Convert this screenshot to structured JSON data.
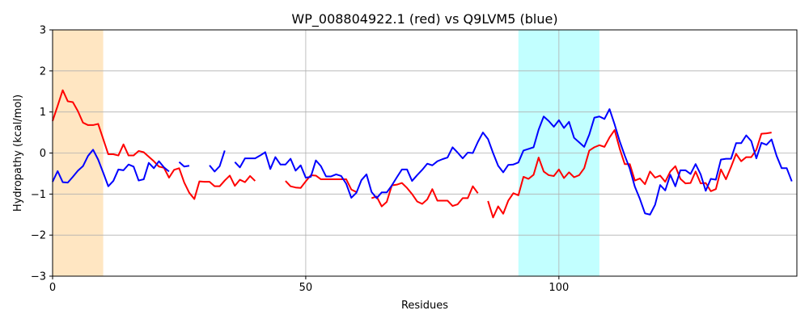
{
  "chart_data": {
    "type": "line",
    "title": "WP_008804922.1 (red) vs Q9LVM5 (blue)",
    "xlabel": "Residues",
    "ylabel": "Hydropathy (kcal/mol)",
    "xlim": [
      0,
      147
    ],
    "ylim": [
      -3,
      3
    ],
    "xticks": [
      0,
      50,
      100
    ],
    "yticks": [
      -3,
      -2,
      -1,
      0,
      1,
      2,
      3
    ],
    "grid": true,
    "highlight_regions": [
      {
        "x0": 0,
        "x1": 10,
        "color": "#ffe6c2"
      },
      {
        "x0": 92,
        "x1": 108,
        "color": "#c2ffff"
      }
    ],
    "series": [
      {
        "color": "#ff0000",
        "segments": [
          [
            [
              0,
              0.78
            ],
            [
              1,
              1.15
            ],
            [
              2,
              1.53
            ],
            [
              3,
              1.26
            ],
            [
              4,
              1.24
            ],
            [
              5,
              1.02
            ],
            [
              6,
              0.74
            ],
            [
              7,
              0.68
            ],
            [
              8,
              0.68
            ],
            [
              9,
              0.71
            ],
            [
              10,
              0.34
            ],
            [
              11,
              -0.03
            ],
            [
              12,
              -0.03
            ],
            [
              13,
              -0.06
            ],
            [
              14,
              0.21
            ],
            [
              15,
              -0.06
            ],
            [
              16,
              -0.06
            ],
            [
              17,
              0.05
            ],
            [
              18,
              0.02
            ],
            [
              19,
              -0.09
            ],
            [
              20,
              -0.2
            ],
            [
              21,
              -0.33
            ],
            [
              22,
              -0.36
            ],
            [
              23,
              -0.6
            ],
            [
              24,
              -0.41
            ],
            [
              25,
              -0.37
            ],
            [
              26,
              -0.72
            ],
            [
              27,
              -0.97
            ],
            [
              28,
              -1.12
            ],
            [
              29,
              -0.69
            ],
            [
              30,
              -0.7
            ],
            [
              31,
              -0.7
            ],
            [
              32,
              -0.81
            ],
            [
              33,
              -0.81
            ],
            [
              34,
              -0.67
            ],
            [
              35,
              -0.55
            ],
            [
              36,
              -0.8
            ],
            [
              37,
              -0.65
            ],
            [
              38,
              -0.71
            ],
            [
              39,
              -0.56
            ],
            [
              40,
              -0.68
            ]
          ],
          [
            [
              46,
              -0.68
            ],
            [
              47,
              -0.81
            ],
            [
              48,
              -0.84
            ],
            [
              49,
              -0.85
            ],
            [
              50,
              -0.69
            ],
            [
              51,
              -0.54
            ],
            [
              52,
              -0.55
            ],
            [
              53,
              -0.64
            ],
            [
              54,
              -0.64
            ],
            [
              55,
              -0.64
            ],
            [
              56,
              -0.64
            ],
            [
              57,
              -0.64
            ],
            [
              58,
              -0.64
            ],
            [
              59,
              -0.89
            ],
            [
              60,
              -0.95
            ]
          ],
          [
            [
              63,
              -1.1
            ],
            [
              64,
              -1.06
            ],
            [
              65,
              -1.3
            ],
            [
              66,
              -1.19
            ],
            [
              67,
              -0.79
            ],
            [
              68,
              -0.77
            ],
            [
              69,
              -0.73
            ],
            [
              70,
              -0.85
            ],
            [
              71,
              -1.0
            ],
            [
              72,
              -1.18
            ],
            [
              73,
              -1.24
            ],
            [
              74,
              -1.13
            ],
            [
              75,
              -0.88
            ],
            [
              76,
              -1.16
            ],
            [
              77,
              -1.16
            ],
            [
              78,
              -1.16
            ],
            [
              79,
              -1.29
            ],
            [
              80,
              -1.25
            ],
            [
              81,
              -1.1
            ],
            [
              82,
              -1.1
            ],
            [
              83,
              -0.81
            ],
            [
              84,
              -0.98
            ]
          ],
          [
            [
              86,
              -1.17
            ],
            [
              87,
              -1.57
            ],
            [
              88,
              -1.3
            ],
            [
              89,
              -1.48
            ],
            [
              90,
              -1.16
            ],
            [
              91,
              -0.98
            ],
            [
              92,
              -1.03
            ],
            [
              93,
              -0.58
            ],
            [
              94,
              -0.63
            ],
            [
              95,
              -0.53
            ],
            [
              96,
              -0.11
            ],
            [
              97,
              -0.45
            ],
            [
              98,
              -0.54
            ],
            [
              99,
              -0.56
            ],
            [
              100,
              -0.4
            ],
            [
              101,
              -0.61
            ],
            [
              102,
              -0.47
            ],
            [
              103,
              -0.59
            ],
            [
              104,
              -0.54
            ],
            [
              105,
              -0.37
            ],
            [
              106,
              0.06
            ],
            [
              107,
              0.14
            ],
            [
              108,
              0.19
            ],
            [
              109,
              0.15
            ],
            [
              110,
              0.38
            ],
            [
              111,
              0.56
            ],
            [
              112,
              0.11
            ],
            [
              113,
              -0.27
            ],
            [
              114,
              -0.27
            ],
            [
              115,
              -0.67
            ],
            [
              116,
              -0.62
            ],
            [
              117,
              -0.76
            ],
            [
              118,
              -0.45
            ],
            [
              119,
              -0.6
            ],
            [
              120,
              -0.55
            ],
            [
              121,
              -0.7
            ],
            [
              122,
              -0.45
            ],
            [
              123,
              -0.32
            ],
            [
              124,
              -0.63
            ],
            [
              125,
              -0.74
            ],
            [
              126,
              -0.73
            ],
            [
              127,
              -0.45
            ],
            [
              128,
              -0.74
            ],
            [
              129,
              -0.73
            ],
            [
              130,
              -0.93
            ],
            [
              131,
              -0.88
            ],
            [
              132,
              -0.4
            ],
            [
              133,
              -0.64
            ],
            [
              134,
              -0.34
            ],
            [
              135,
              -0.02
            ],
            [
              136,
              -0.2
            ],
            [
              137,
              -0.1
            ],
            [
              138,
              -0.1
            ],
            [
              139,
              0.08
            ],
            [
              140,
              0.47
            ],
            [
              141,
              0.48
            ],
            [
              142,
              0.5
            ]
          ]
        ]
      },
      {
        "color": "#0000ff",
        "segments": [
          [
            [
              0,
              -0.7
            ],
            [
              1,
              -0.44
            ],
            [
              2,
              -0.71
            ],
            [
              3,
              -0.72
            ],
            [
              4,
              -0.58
            ],
            [
              5,
              -0.43
            ],
            [
              6,
              -0.32
            ],
            [
              7,
              -0.07
            ],
            [
              8,
              0.08
            ],
            [
              9,
              -0.16
            ],
            [
              10,
              -0.48
            ],
            [
              11,
              -0.81
            ],
            [
              12,
              -0.68
            ],
            [
              13,
              -0.4
            ],
            [
              14,
              -0.42
            ],
            [
              15,
              -0.28
            ],
            [
              16,
              -0.33
            ],
            [
              17,
              -0.67
            ],
            [
              18,
              -0.64
            ],
            [
              19,
              -0.24
            ],
            [
              20,
              -0.37
            ],
            [
              21,
              -0.2
            ],
            [
              22,
              -0.35
            ],
            [
              23,
              -0.45
            ]
          ],
          [
            [
              25,
              -0.22
            ],
            [
              26,
              -0.33
            ],
            [
              27,
              -0.31
            ]
          ],
          [
            [
              31,
              -0.3
            ],
            [
              32,
              -0.45
            ],
            [
              33,
              -0.32
            ],
            [
              34,
              0.06
            ]
          ],
          [
            [
              36,
              -0.22
            ],
            [
              37,
              -0.35
            ],
            [
              38,
              -0.13
            ],
            [
              39,
              -0.13
            ],
            [
              40,
              -0.13
            ],
            [
              41,
              -0.06
            ],
            [
              42,
              0.02
            ],
            [
              43,
              -0.39
            ],
            [
              44,
              -0.1
            ],
            [
              45,
              -0.28
            ],
            [
              46,
              -0.28
            ],
            [
              47,
              -0.14
            ],
            [
              48,
              -0.43
            ],
            [
              49,
              -0.3
            ],
            [
              50,
              -0.6
            ],
            [
              51,
              -0.58
            ],
            [
              52,
              -0.18
            ],
            [
              53,
              -0.32
            ],
            [
              54,
              -0.57
            ],
            [
              55,
              -0.57
            ],
            [
              56,
              -0.52
            ],
            [
              57,
              -0.56
            ],
            [
              58,
              -0.75
            ],
            [
              59,
              -1.09
            ],
            [
              60,
              -0.97
            ],
            [
              61,
              -0.66
            ],
            [
              62,
              -0.52
            ],
            [
              63,
              -0.95
            ],
            [
              64,
              -1.1
            ],
            [
              65,
              -0.96
            ],
            [
              66,
              -0.96
            ],
            [
              67,
              -0.79
            ],
            [
              68,
              -0.59
            ],
            [
              69,
              -0.4
            ],
            [
              70,
              -0.4
            ],
            [
              71,
              -0.68
            ],
            [
              72,
              -0.54
            ],
            [
              73,
              -0.41
            ],
            [
              74,
              -0.26
            ],
            [
              75,
              -0.3
            ],
            [
              76,
              -0.2
            ],
            [
              77,
              -0.15
            ],
            [
              78,
              -0.11
            ],
            [
              79,
              0.14
            ],
            [
              80,
              0.01
            ],
            [
              81,
              -0.13
            ],
            [
              82,
              0.01
            ],
            [
              83,
              0.0
            ],
            [
              84,
              0.27
            ],
            [
              85,
              0.5
            ],
            [
              86,
              0.34
            ],
            [
              87,
              0.0
            ],
            [
              88,
              -0.31
            ],
            [
              89,
              -0.47
            ],
            [
              90,
              -0.29
            ],
            [
              91,
              -0.28
            ],
            [
              92,
              -0.23
            ],
            [
              93,
              0.06
            ],
            [
              94,
              0.1
            ],
            [
              95,
              0.14
            ],
            [
              96,
              0.57
            ],
            [
              97,
              0.89
            ],
            [
              98,
              0.78
            ],
            [
              99,
              0.64
            ],
            [
              100,
              0.8
            ],
            [
              101,
              0.61
            ],
            [
              102,
              0.76
            ],
            [
              103,
              0.37
            ],
            [
              104,
              0.26
            ],
            [
              105,
              0.15
            ],
            [
              106,
              0.45
            ],
            [
              107,
              0.86
            ],
            [
              108,
              0.89
            ],
            [
              109,
              0.83
            ],
            [
              110,
              1.07
            ],
            [
              111,
              0.7
            ],
            [
              112,
              0.29
            ],
            [
              113,
              -0.06
            ],
            [
              114,
              -0.38
            ],
            [
              115,
              -0.82
            ],
            [
              116,
              -1.12
            ],
            [
              117,
              -1.47
            ],
            [
              118,
              -1.5
            ],
            [
              119,
              -1.26
            ],
            [
              120,
              -0.78
            ],
            [
              121,
              -0.91
            ],
            [
              122,
              -0.53
            ],
            [
              123,
              -0.81
            ],
            [
              124,
              -0.42
            ],
            [
              125,
              -0.42
            ],
            [
              126,
              -0.51
            ],
            [
              127,
              -0.27
            ],
            [
              128,
              -0.52
            ],
            [
              129,
              -0.92
            ],
            [
              130,
              -0.63
            ],
            [
              131,
              -0.65
            ],
            [
              132,
              -0.16
            ],
            [
              133,
              -0.14
            ],
            [
              134,
              -0.14
            ],
            [
              135,
              0.24
            ],
            [
              136,
              0.24
            ],
            [
              137,
              0.43
            ],
            [
              138,
              0.29
            ],
            [
              139,
              -0.13
            ],
            [
              140,
              0.25
            ],
            [
              141,
              0.2
            ],
            [
              142,
              0.33
            ],
            [
              143,
              -0.07
            ],
            [
              144,
              -0.37
            ],
            [
              145,
              -0.37
            ],
            [
              146,
              -0.69
            ]
          ]
        ]
      }
    ]
  }
}
